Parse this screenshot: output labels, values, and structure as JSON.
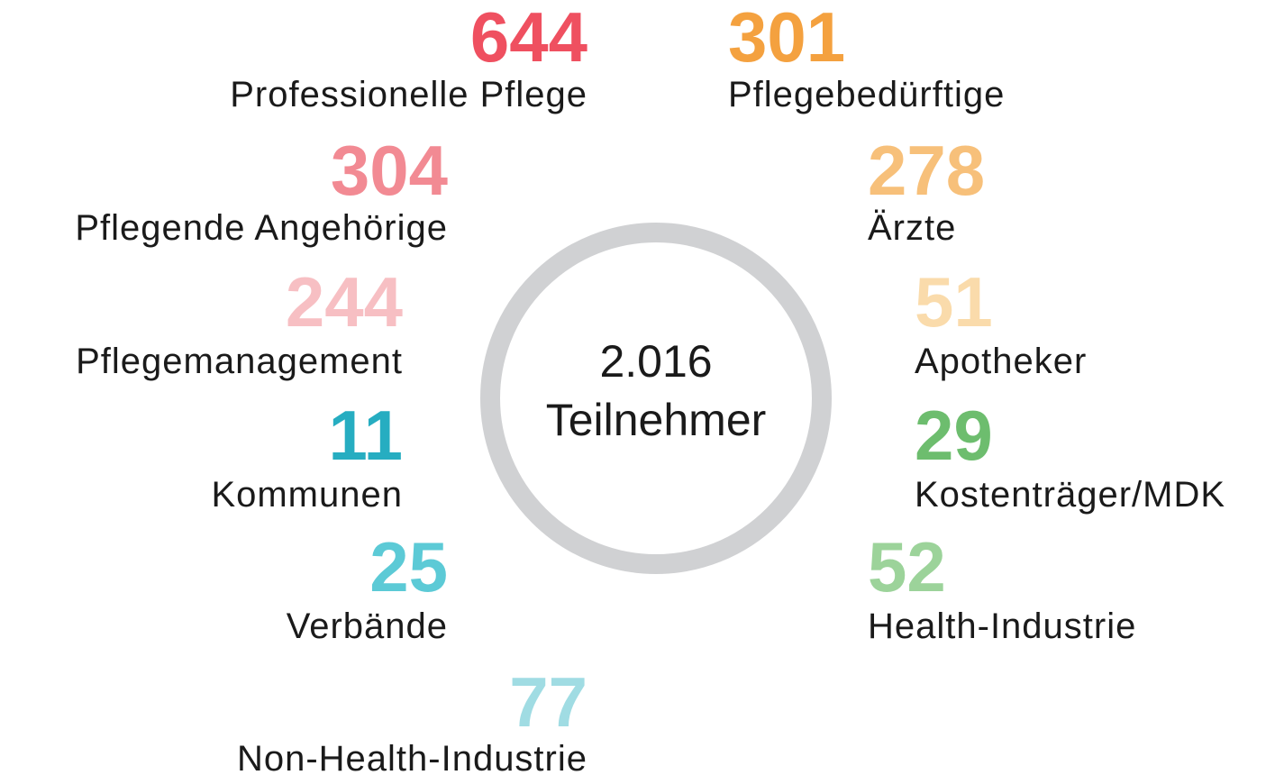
{
  "center": {
    "total": "2.016",
    "label": "Teilnehmer"
  },
  "items": [
    {
      "value": 644,
      "label": "Professionelle Pflege",
      "color": "#ef5060"
    },
    {
      "value": 304,
      "label": "Pflegende Angehörige",
      "color": "#f28a93"
    },
    {
      "value": 244,
      "label": "Pflegemanagement",
      "color": "#f7bfc3"
    },
    {
      "value": 11,
      "label": "Kommunen",
      "color": "#26adc1"
    },
    {
      "value": 25,
      "label": "Verbände",
      "color": "#5ccad6"
    },
    {
      "value": 77,
      "label": "Non-Health-Industrie",
      "color": "#a0dce3"
    },
    {
      "value": 301,
      "label": "Pflegebedürftige",
      "color": "#f4a13f"
    },
    {
      "value": 278,
      "label": "Ärzte",
      "color": "#f7c07a"
    },
    {
      "value": 51,
      "label": "Apotheker",
      "color": "#fadbab"
    },
    {
      "value": 29,
      "label": "Kostenträger/MDK",
      "color": "#6dbd6e"
    },
    {
      "value": 52,
      "label": "Health-Industrie",
      "color": "#9cd39a"
    }
  ]
}
